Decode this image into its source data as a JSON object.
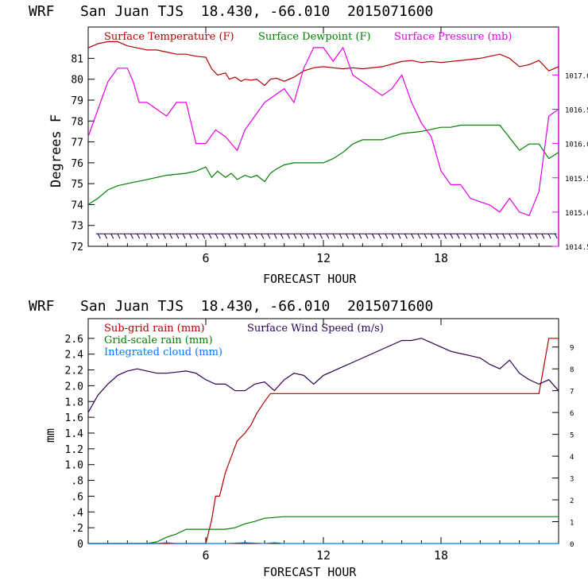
{
  "chart_data": [
    {
      "type": "line",
      "title": "WRF   San Juan TJS  18.430, -66.010  2015071600",
      "xlabel": "FORECAST HOUR",
      "ylabel": "Degrees F",
      "xlim": [
        0,
        24
      ],
      "x_ticks": [
        "6",
        "12",
        "18"
      ],
      "ylim": [
        72,
        82.5
      ],
      "y_ticks": [
        "72",
        "73",
        "74",
        "75",
        "76",
        "77",
        "78",
        "79",
        "80",
        "81"
      ],
      "y2lim": [
        1014.5,
        1017.7
      ],
      "y2_ticks": [
        "1014.5",
        "1015.0",
        "1015.5",
        "1016.0",
        "1016.5",
        "1017.0"
      ],
      "legend": "top",
      "series": [
        {
          "name": "Surface Temperature (F)",
          "color": "#b00000",
          "axis": "left",
          "x": [
            0,
            0.5,
            1,
            1.5,
            2,
            2.5,
            3,
            3.5,
            4,
            4.5,
            5,
            5.5,
            6,
            6.3,
            6.6,
            7,
            7.2,
            7.5,
            7.8,
            8,
            8.3,
            8.6,
            9,
            9.3,
            9.6,
            10,
            10.5,
            11,
            11.5,
            12,
            12.5,
            13,
            13.5,
            14,
            15,
            16,
            16.5,
            17,
            17.5,
            18,
            19,
            20,
            21,
            21.5,
            22,
            22.5,
            23,
            23.5,
            24
          ],
          "values": [
            81.5,
            81.7,
            81.8,
            81.8,
            81.6,
            81.5,
            81.4,
            81.4,
            81.3,
            81.2,
            81.2,
            81.1,
            81.05,
            80.5,
            80.2,
            80.3,
            80.0,
            80.1,
            79.9,
            80.0,
            79.95,
            80.0,
            79.7,
            80.0,
            80.05,
            79.9,
            80.1,
            80.4,
            80.55,
            80.6,
            80.55,
            80.5,
            80.55,
            80.5,
            80.6,
            80.85,
            80.9,
            80.8,
            80.85,
            80.8,
            80.9,
            81.0,
            81.2,
            81.0,
            80.6,
            80.7,
            80.9,
            80.4,
            80.6
          ]
        },
        {
          "name": "Surface Dewpoint (F)",
          "color": "#008000",
          "axis": "left",
          "x": [
            0,
            0.5,
            1,
            1.5,
            2,
            3,
            4,
            5,
            5.5,
            6,
            6.3,
            6.6,
            7,
            7.3,
            7.6,
            8,
            8.3,
            8.6,
            9,
            9.3,
            9.6,
            10,
            10.5,
            11,
            12,
            12.5,
            13,
            13.5,
            14,
            14.5,
            15,
            16,
            17,
            18,
            18.5,
            19,
            19.5,
            20,
            21,
            21.5,
            22,
            22.5,
            23,
            23.5,
            24
          ],
          "values": [
            74.0,
            74.3,
            74.7,
            74.9,
            75.0,
            75.2,
            75.4,
            75.5,
            75.6,
            75.8,
            75.3,
            75.6,
            75.3,
            75.5,
            75.2,
            75.4,
            75.3,
            75.4,
            75.1,
            75.5,
            75.7,
            75.9,
            76.0,
            76.0,
            76.0,
            76.2,
            76.5,
            76.9,
            77.1,
            77.1,
            77.1,
            77.4,
            77.5,
            77.7,
            77.7,
            77.8,
            77.8,
            77.8,
            77.8,
            77.2,
            76.6,
            76.9,
            76.9,
            76.2,
            76.5
          ]
        },
        {
          "name": "Surface Pressure (mb)",
          "color": "#e600e6",
          "axis": "right",
          "x": [
            0,
            0.5,
            1,
            1.5,
            2,
            2.3,
            2.6,
            3,
            3.5,
            4,
            4.5,
            5,
            5.5,
            6,
            6.5,
            7,
            7.3,
            7.6,
            8,
            8.5,
            9,
            9.5,
            10,
            10.5,
            11,
            11.5,
            12,
            12.5,
            13,
            13.5,
            14,
            14.5,
            15,
            15.5,
            16,
            16.5,
            17,
            17.5,
            18,
            18.5,
            19,
            19.5,
            20,
            20.5,
            21,
            21.5,
            22,
            22.5,
            23,
            23.5,
            24
          ],
          "values": [
            1016.1,
            1016.5,
            1016.9,
            1017.1,
            1017.1,
            1016.9,
            1016.6,
            1016.6,
            1016.5,
            1016.4,
            1016.6,
            1016.6,
            1016.0,
            1016.0,
            1016.2,
            1016.1,
            1016.0,
            1015.9,
            1016.2,
            1016.4,
            1016.6,
            1016.7,
            1016.8,
            1016.6,
            1017.1,
            1017.4,
            1017.4,
            1017.2,
            1017.4,
            1017.0,
            1016.9,
            1016.8,
            1016.7,
            1016.8,
            1017.0,
            1016.6,
            1016.3,
            1016.1,
            1015.6,
            1015.4,
            1015.4,
            1015.2,
            1015.15,
            1015.1,
            1015.0,
            1015.2,
            1015.0,
            1014.95,
            1015.3,
            1016.4,
            1016.5
          ]
        }
      ],
      "bottom_marks": {
        "name": "wind barbs",
        "y": 72.6,
        "color": "#200040"
      }
    },
    {
      "type": "line",
      "title": "WRF   San Juan TJS  18.430, -66.010  2015071600",
      "xlabel": "FORECAST HOUR",
      "ylabel": "mm",
      "xlim": [
        0,
        24
      ],
      "x_ticks": [
        "6",
        "12",
        "18"
      ],
      "ylim": [
        0,
        2.85
      ],
      "y_ticks": [
        "0",
        ".2",
        ".4",
        ".6",
        ".8",
        "1.0",
        "1.2",
        "1.4",
        "1.6",
        "1.8",
        "2.0",
        "2.2",
        "2.4",
        "2.6"
      ],
      "y2lim": [
        0,
        10.3
      ],
      "y2_ticks": [
        "0",
        "1",
        "2",
        "3",
        "4",
        "5",
        "6",
        "7",
        "8",
        "9"
      ],
      "legend": "top-left",
      "series": [
        {
          "name": "Sub-grid rain (mm)",
          "color": "#b00000",
          "axis": "left",
          "x": [
            0,
            6,
            6.3,
            6.5,
            6.7,
            7,
            7.3,
            7.6,
            8,
            8.3,
            8.6,
            9,
            9.3,
            9.6,
            10,
            12,
            14,
            16,
            18,
            20,
            22,
            23,
            23.5,
            24
          ],
          "values": [
            0,
            0,
            0.3,
            0.6,
            0.6,
            0.9,
            1.1,
            1.3,
            1.4,
            1.5,
            1.65,
            1.8,
            1.9,
            1.9,
            1.9,
            1.9,
            1.9,
            1.9,
            1.9,
            1.9,
            1.9,
            1.9,
            2.6,
            2.6
          ]
        },
        {
          "name": "Grid-scale rain (mm)",
          "color": "#008000",
          "axis": "left",
          "x": [
            0,
            3,
            3.5,
            4,
            4.5,
            5,
            6,
            7,
            7.5,
            8,
            8.5,
            9,
            10,
            12,
            16,
            20,
            24
          ],
          "values": [
            0,
            0,
            0.02,
            0.08,
            0.12,
            0.18,
            0.18,
            0.18,
            0.2,
            0.25,
            0.28,
            0.32,
            0.34,
            0.34,
            0.34,
            0.34,
            0.34
          ]
        },
        {
          "name": "Integrated cloud (mm)",
          "color": "#0078ff",
          "axis": "left",
          "x": [
            0,
            3.5,
            4,
            4.5,
            5,
            7,
            8,
            9,
            9.5,
            10,
            24
          ],
          "values": [
            0,
            0,
            0.01,
            0,
            0,
            0,
            0.01,
            0,
            0.01,
            0,
            0
          ]
        },
        {
          "name": "Surface Wind Speed (m/s)",
          "color": "#2a0050",
          "axis": "right",
          "x": [
            0,
            0.5,
            1,
            1.5,
            2,
            2.5,
            3,
            3.5,
            4,
            4.5,
            5,
            5.5,
            6,
            6.5,
            7,
            7.5,
            8,
            8.5,
            9,
            9.5,
            10,
            10.5,
            11,
            11.5,
            12,
            12.5,
            13,
            13.5,
            14,
            14.5,
            15,
            15.5,
            16,
            16.5,
            17,
            17.5,
            18,
            18.5,
            19,
            19.5,
            20,
            20.5,
            21,
            21.5,
            22,
            22.5,
            23,
            23.5,
            24
          ],
          "values": [
            6.0,
            6.8,
            7.3,
            7.7,
            7.9,
            8.0,
            7.9,
            7.8,
            7.8,
            7.85,
            7.9,
            7.8,
            7.5,
            7.3,
            7.3,
            7.0,
            7.0,
            7.3,
            7.4,
            7.0,
            7.5,
            7.8,
            7.7,
            7.3,
            7.7,
            7.9,
            8.1,
            8.3,
            8.5,
            8.7,
            8.9,
            9.1,
            9.3,
            9.3,
            9.4,
            9.2,
            9.0,
            8.8,
            8.7,
            8.6,
            8.5,
            8.2,
            8.0,
            8.4,
            7.8,
            7.5,
            7.3,
            7.5,
            7.0
          ]
        }
      ]
    }
  ]
}
